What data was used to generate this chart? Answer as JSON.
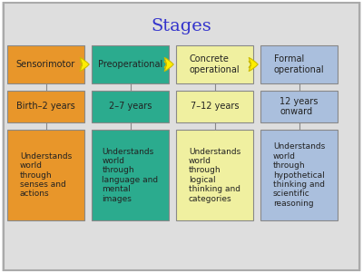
{
  "title": "Stages",
  "title_color": "#3333CC",
  "title_fontsize": 14,
  "background_color": "#DEDEDE",
  "outer_border_color": "#AAAAAA",
  "columns": [
    {
      "stage_color": "#E8962A",
      "stage_text": "Sensorimotor",
      "age_text": "Birth–2 years",
      "desc_text": "Understands\nworld\nthrough\nsenses and\nactions"
    },
    {
      "stage_color": "#2BAB8E",
      "stage_text": "Preoperational",
      "age_text": "2–7 years",
      "desc_text": "Understands\nworld\nthrough\nlanguage and\nmental\nimages"
    },
    {
      "stage_color": "#F0F0A0",
      "stage_text": "Concrete\noperational",
      "age_text": "7–12 years",
      "desc_text": "Understands\nworld\nthrough\nlogical\nthinking and\ncategories"
    },
    {
      "stage_color": "#AABFDD",
      "stage_text": "Formal\noperational",
      "age_text": "12 years\nonward",
      "desc_text": "Understands\nworld\nthrough\nhypothetical\nthinking and\nscientific\nreasoning"
    }
  ],
  "arrow_color": "#FFEE00",
  "arrow_edge_color": "#CCBB00",
  "box_border_color": "#888888",
  "text_color": "#222222",
  "figsize": [
    4.0,
    3.01
  ],
  "dpi": 100
}
